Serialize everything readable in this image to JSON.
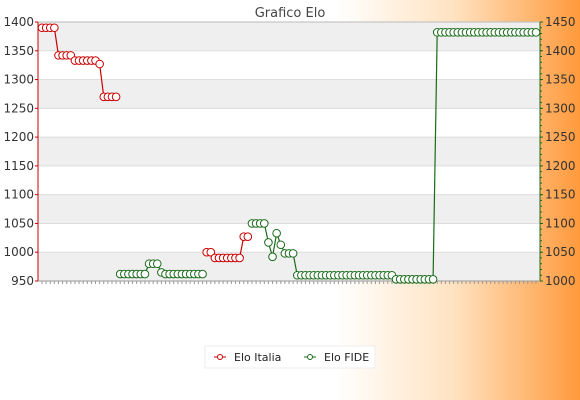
{
  "chart_data": {
    "type": "line",
    "title": "Grafico Elo",
    "y_left": {
      "min": 950,
      "max": 1400,
      "ticks": [
        950,
        1000,
        1050,
        1100,
        1150,
        1200,
        1250,
        1300,
        1350,
        1400
      ]
    },
    "y_right": {
      "min": 1000,
      "max": 1450,
      "ticks": [
        1000,
        1050,
        1100,
        1150,
        1200,
        1250,
        1300,
        1350,
        1400,
        1450
      ]
    },
    "grid": true,
    "legend_position": "bottom-center",
    "colors": {
      "elo_italia": "#cc0000",
      "elo_fide": "#1a6b1a",
      "band": "#efefef"
    },
    "series": [
      {
        "name": "Elo Italia",
        "axis": "left",
        "values": [
          1390,
          1390,
          1390,
          1390,
          1342,
          1342,
          1342,
          1342,
          1333,
          1333,
          1333,
          1333,
          1333,
          1333,
          1327,
          1270,
          1270,
          1270,
          1270,
          null,
          null,
          null,
          null,
          null,
          null,
          null,
          null,
          null,
          null,
          null,
          null,
          null,
          null,
          null,
          null,
          null,
          null,
          null,
          null,
          null,
          1000,
          1000,
          990,
          990,
          990,
          990,
          990,
          990,
          990,
          1027,
          1027
        ]
      },
      {
        "name": "Elo FIDE",
        "axis": "right",
        "values": [
          null,
          null,
          null,
          null,
          null,
          null,
          null,
          null,
          null,
          null,
          null,
          null,
          null,
          null,
          null,
          null,
          null,
          null,
          null,
          1012,
          1012,
          1012,
          1012,
          1012,
          1012,
          1012,
          1030,
          1030,
          1030,
          1015,
          1012,
          1012,
          1012,
          1012,
          1012,
          1012,
          1012,
          1012,
          1012,
          1012,
          null,
          null,
          null,
          null,
          null,
          null,
          null,
          null,
          null,
          null,
          null,
          1100,
          1100,
          1100,
          1100,
          1067,
          1042,
          1083,
          1063,
          1048,
          1048,
          1048,
          1010,
          1010,
          1010,
          1010,
          1010,
          1010,
          1010,
          1010,
          1010,
          1010,
          1010,
          1010,
          1010,
          1010,
          1010,
          1010,
          1010,
          1010,
          1010,
          1010,
          1010,
          1010,
          1010,
          1010,
          1003,
          1003,
          1003,
          1003,
          1003,
          1003,
          1003,
          1003,
          1003,
          1003,
          1432,
          1432,
          1432,
          1432,
          1432,
          1432,
          1432,
          1432,
          1432,
          1432,
          1432,
          1432,
          1432,
          1432,
          1432,
          1432,
          1432,
          1432,
          1432,
          1432,
          1432,
          1432,
          1432,
          1432,
          1432
        ]
      }
    ]
  }
}
